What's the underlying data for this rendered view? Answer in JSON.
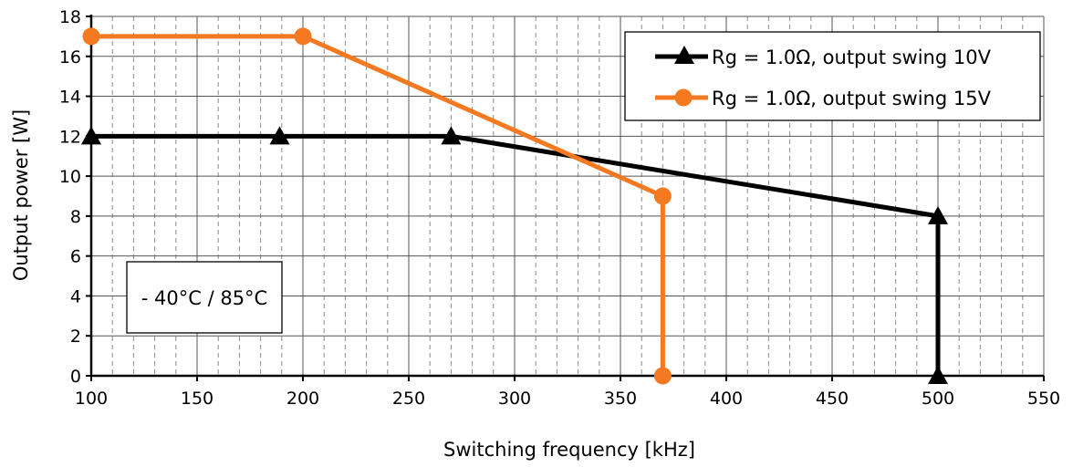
{
  "chart_data": {
    "type": "line",
    "title": "",
    "xlabel": "Switching frequency [kHz]",
    "ylabel": "Output power [W]",
    "xlim": [
      100,
      550
    ],
    "ylim": [
      0,
      18
    ],
    "x_ticks": [
      100,
      150,
      200,
      250,
      300,
      350,
      400,
      450,
      500,
      550
    ],
    "y_ticks": [
      0,
      2,
      4,
      6,
      8,
      10,
      12,
      14,
      16,
      18
    ],
    "grid": true,
    "legend_position": "top-right",
    "annotation": "- 40°C / 85°C",
    "series": [
      {
        "name": "Rg = 1.0Ω, output swing 10V",
        "color": "#000000",
        "marker": "triangle",
        "points": [
          [
            100,
            12
          ],
          [
            189,
            12
          ],
          [
            270,
            12
          ],
          [
            500,
            8
          ],
          [
            500,
            0
          ]
        ]
      },
      {
        "name": "Rg = 1.0Ω, output swing 15V",
        "color": "#f47920",
        "marker": "circle",
        "points": [
          [
            100,
            17
          ],
          [
            200,
            17
          ],
          [
            370,
            9
          ],
          [
            370,
            0
          ]
        ]
      }
    ]
  }
}
